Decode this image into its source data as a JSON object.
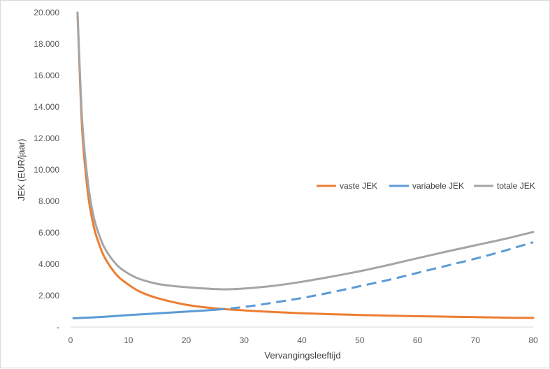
{
  "chart_data": {
    "type": "line",
    "xlabel": "Vervangingsleeftijd",
    "ylabel": "JEK (EUR/jaar)",
    "xlim": [
      0,
      80
    ],
    "ylim": [
      0,
      20000
    ],
    "x_ticks": [
      "0",
      "10",
      "20",
      "30",
      "40",
      "50",
      "60",
      "70",
      "80"
    ],
    "y_ticks": [
      "-",
      "2.000",
      "4.000",
      "6.000",
      "8.000",
      "10.000",
      "12.000",
      "14.000",
      "16.000",
      "18.000",
      "20.000"
    ],
    "grid": false,
    "legend_position": "right",
    "series": [
      {
        "name": "vaste JEK",
        "color": "#ED7D31",
        "style": "solid",
        "x": [
          1.2,
          2,
          3,
          4,
          5,
          6,
          8,
          10,
          12,
          15,
          20,
          25,
          30,
          35,
          40,
          45,
          50,
          55,
          60,
          65,
          70,
          75,
          80
        ],
        "y": [
          20000,
          12600,
          8500,
          6400,
          5200,
          4350,
          3300,
          2700,
          2250,
          1840,
          1420,
          1190,
          1060,
          960,
          880,
          820,
          770,
          730,
          690,
          660,
          630,
          600,
          580
        ]
      },
      {
        "name": "variabele JEK",
        "color": "#5B9BD5",
        "style": "solid",
        "x": [
          0.5,
          5,
          10,
          15,
          20,
          25
        ],
        "y": [
          560,
          640,
          760,
          870,
          980,
          1100
        ]
      },
      {
        "name": "",
        "color": "#5B9BD5",
        "style": "dashed",
        "x": [
          25,
          30,
          35,
          40,
          45,
          50,
          55,
          60,
          65,
          70,
          75,
          80
        ],
        "y": [
          1100,
          1280,
          1550,
          1850,
          2200,
          2600,
          3000,
          3450,
          3900,
          4350,
          4850,
          5400
        ]
      },
      {
        "name": "totale JEK",
        "color": "#A5A5A5",
        "style": "solid",
        "x": [
          1.2,
          2,
          3,
          4,
          5,
          6,
          8,
          10,
          12,
          15,
          18,
          20,
          22,
          25,
          27,
          30,
          35,
          40,
          45,
          50,
          55,
          60,
          65,
          70,
          75,
          80
        ],
        "y": [
          20000,
          13200,
          9200,
          7000,
          5800,
          4950,
          3950,
          3400,
          3050,
          2750,
          2600,
          2540,
          2480,
          2420,
          2400,
          2450,
          2620,
          2880,
          3200,
          3550,
          3950,
          4380,
          4800,
          5200,
          5600,
          6050
        ]
      }
    ]
  }
}
